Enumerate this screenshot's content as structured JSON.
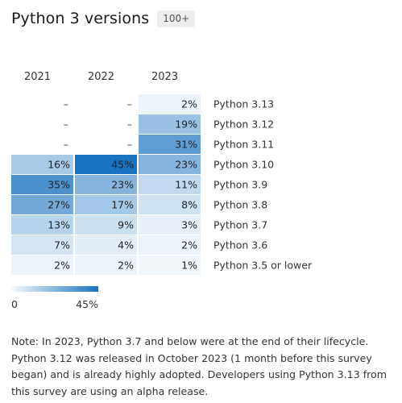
{
  "header": {
    "title": "Python 3 versions",
    "badge": "100+"
  },
  "chart_data": {
    "type": "heatmap",
    "title": "Python 3 versions",
    "columns": [
      "2021",
      "2022",
      "2023"
    ],
    "rows": [
      "Python 3.13",
      "Python 3.12",
      "Python 3.11",
      "Python 3.10",
      "Python 3.9",
      "Python 3.8",
      "Python 3.7",
      "Python 3.6",
      "Python 3.5 or lower"
    ],
    "values": [
      [
        null,
        null,
        2
      ],
      [
        null,
        null,
        19
      ],
      [
        null,
        null,
        31
      ],
      [
        16,
        45,
        23
      ],
      [
        35,
        23,
        11
      ],
      [
        27,
        17,
        8
      ],
      [
        13,
        9,
        3
      ],
      [
        7,
        4,
        2
      ],
      [
        2,
        2,
        1
      ]
    ],
    "missing_label": "–",
    "value_suffix": "%",
    "color_scale": {
      "min": 0,
      "max": 45,
      "min_label": "0",
      "max_label": "45%",
      "low_color": "#ffffff",
      "high_color": "#1a73c0"
    }
  },
  "note": "Note: In 2023, Python 3.7 and below were at the end of their lifecycle. Python 3.12 was released in October 2023 (1 month before this survey began) and is already highly adopted. Developers using Python 3.13 from this survey are using an alpha release."
}
